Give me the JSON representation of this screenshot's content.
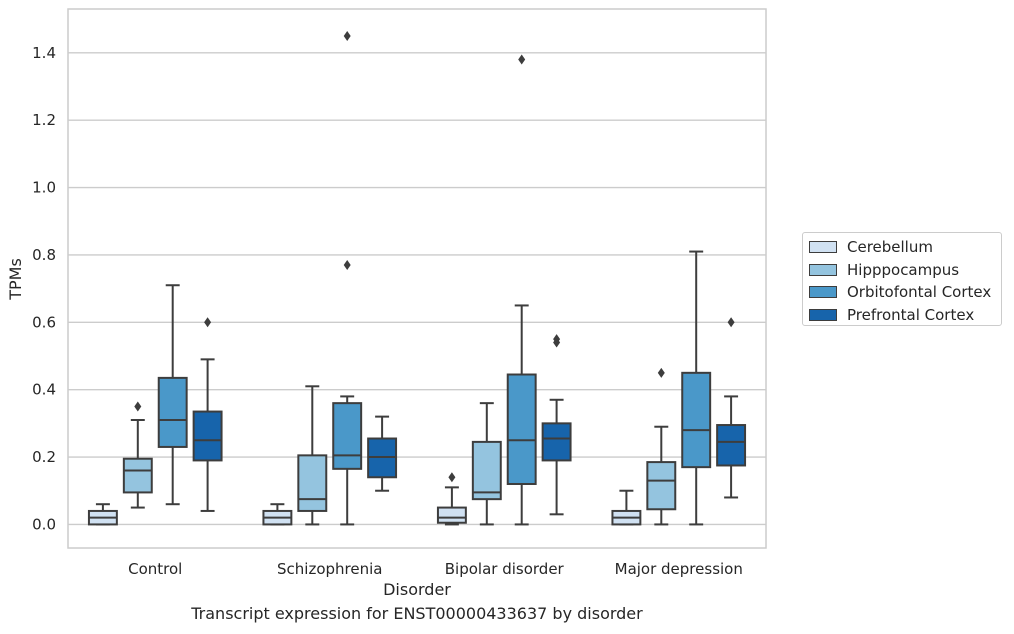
{
  "caption": "Transcript expression for ENST00000433637 by disorder",
  "colors": {
    "Cerebellum": "#d0e1f2",
    "Hipppocampus": "#94c4df",
    "Orbitofontal Cortex": "#4a98c9",
    "Prefrontal Cortex": "#1764ab",
    "grid": "#cccccc",
    "stroke": "#3d3d3d"
  },
  "chart_data": {
    "type": "box",
    "title": "",
    "xlabel": "Disorder",
    "ylabel": "TPMs",
    "ylim": [
      -0.07,
      1.53
    ],
    "yticks": [
      0.0,
      0.2,
      0.4,
      0.6,
      0.8,
      1.0,
      1.2,
      1.4
    ],
    "ytick_labels": [
      "0.0",
      "0.2",
      "0.4",
      "0.6",
      "0.8",
      "1.0",
      "1.2",
      "1.4"
    ],
    "grid": true,
    "legend_position": "right, outside",
    "categories": [
      "Control",
      "Schizophrenia",
      "Bipolar disorder",
      "Major depression"
    ],
    "series": [
      {
        "name": "Cerebellum",
        "boxes": [
          {
            "whislo": 0.0,
            "q1": 0.0,
            "med": 0.02,
            "q3": 0.04,
            "whishi": 0.06,
            "fliers": []
          },
          {
            "whislo": 0.0,
            "q1": 0.0,
            "med": 0.02,
            "q3": 0.04,
            "whishi": 0.06,
            "fliers": []
          },
          {
            "whislo": 0.0,
            "q1": 0.005,
            "med": 0.02,
            "q3": 0.05,
            "whishi": 0.11,
            "fliers": [
              0.14
            ]
          },
          {
            "whislo": 0.0,
            "q1": 0.0,
            "med": 0.02,
            "q3": 0.04,
            "whishi": 0.1,
            "fliers": []
          }
        ]
      },
      {
        "name": "Hipppocampus",
        "boxes": [
          {
            "whislo": 0.05,
            "q1": 0.095,
            "med": 0.16,
            "q3": 0.195,
            "whishi": 0.31,
            "fliers": [
              0.35
            ]
          },
          {
            "whislo": 0.0,
            "q1": 0.04,
            "med": 0.075,
            "q3": 0.205,
            "whishi": 0.41,
            "fliers": []
          },
          {
            "whislo": 0.0,
            "q1": 0.075,
            "med": 0.095,
            "q3": 0.245,
            "whishi": 0.36,
            "fliers": []
          },
          {
            "whislo": 0.0,
            "q1": 0.045,
            "med": 0.13,
            "q3": 0.185,
            "whishi": 0.29,
            "fliers": [
              0.45
            ]
          }
        ]
      },
      {
        "name": "Orbitofontal Cortex",
        "boxes": [
          {
            "whislo": 0.06,
            "q1": 0.23,
            "med": 0.31,
            "q3": 0.435,
            "whishi": 0.71,
            "fliers": []
          },
          {
            "whislo": 0.0,
            "q1": 0.165,
            "med": 0.205,
            "q3": 0.36,
            "whishi": 0.38,
            "fliers": [
              0.77,
              1.45
            ]
          },
          {
            "whislo": 0.0,
            "q1": 0.12,
            "med": 0.25,
            "q3": 0.445,
            "whishi": 0.65,
            "fliers": [
              1.38
            ]
          },
          {
            "whislo": 0.0,
            "q1": 0.17,
            "med": 0.28,
            "q3": 0.45,
            "whishi": 0.81,
            "fliers": []
          }
        ]
      },
      {
        "name": "Prefrontal Cortex",
        "boxes": [
          {
            "whislo": 0.04,
            "q1": 0.19,
            "med": 0.25,
            "q3": 0.335,
            "whishi": 0.49,
            "fliers": [
              0.6
            ]
          },
          {
            "whislo": 0.1,
            "q1": 0.14,
            "med": 0.2,
            "q3": 0.255,
            "whishi": 0.32,
            "fliers": []
          },
          {
            "whislo": 0.03,
            "q1": 0.19,
            "med": 0.255,
            "q3": 0.3,
            "whishi": 0.37,
            "fliers": [
              0.54,
              0.55
            ]
          },
          {
            "whislo": 0.08,
            "q1": 0.175,
            "med": 0.245,
            "q3": 0.295,
            "whishi": 0.38,
            "fliers": [
              0.6
            ]
          }
        ]
      }
    ]
  }
}
